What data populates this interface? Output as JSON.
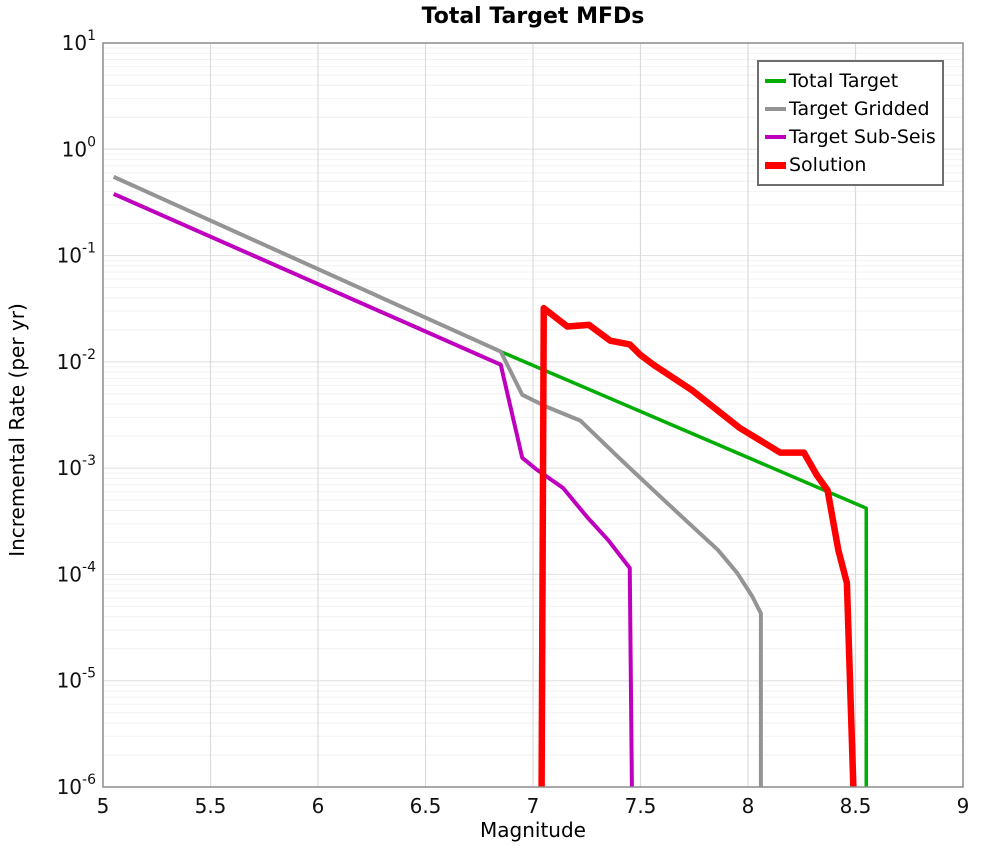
{
  "figure": {
    "background": "#ffffff"
  },
  "chart_data": {
    "type": "line",
    "title": "Total Target MFDs",
    "xlabel": "Magnitude",
    "ylabel": "Incremental Rate (per yr)",
    "x_scale": "linear",
    "y_scale": "log",
    "xlim": [
      5,
      9
    ],
    "ylim_exp": [
      -6,
      1
    ],
    "x_ticks": [
      {
        "value": 5,
        "label": "5"
      },
      {
        "value": 5.5,
        "label": "5.5"
      },
      {
        "value": 6,
        "label": "6"
      },
      {
        "value": 6.5,
        "label": "6.5"
      },
      {
        "value": 7,
        "label": "7"
      },
      {
        "value": 7.5,
        "label": "7.5"
      },
      {
        "value": 8,
        "label": "8"
      },
      {
        "value": 8.5,
        "label": "8.5"
      },
      {
        "value": 9,
        "label": "9"
      }
    ],
    "y_tick_exponents": [
      1,
      0,
      -1,
      -2,
      -3,
      -4,
      -5,
      -6
    ],
    "grid": {
      "vertical_ticks": [
        5.5,
        6,
        6.5,
        7,
        7.5,
        8,
        8.5
      ],
      "major_color": "#e4e4e4",
      "minor_color": "#f2f2f2",
      "vertical_color": "#dbdbdb"
    },
    "frame_color": "#8c8c8c",
    "legend": {
      "position": "top-right",
      "border_color": "#6e6e6e",
      "background": "#ffffff"
    },
    "series": [
      {
        "name": "Total Target",
        "color": "#00ad00",
        "width": 3.5,
        "points": [
          [
            5.05,
            0.55
          ],
          [
            6.85,
            0.0125
          ],
          [
            8.55,
            0.00042
          ],
          [
            8.55,
            1e-06
          ]
        ]
      },
      {
        "name": "Target Gridded",
        "color": "#949494",
        "width": 4,
        "points": [
          [
            5.05,
            0.55
          ],
          [
            6.85,
            0.0125
          ],
          [
            6.95,
            0.0049
          ],
          [
            7.06,
            0.0038
          ],
          [
            7.22,
            0.0028
          ],
          [
            7.4,
            0.00125
          ],
          [
            7.56,
            0.00062
          ],
          [
            7.72,
            0.00031
          ],
          [
            7.86,
            0.00017
          ],
          [
            7.95,
            0.000103
          ],
          [
            8.02,
            6.2e-05
          ],
          [
            8.06,
            4.3e-05
          ],
          [
            8.06,
            1e-06
          ]
        ]
      },
      {
        "name": "Target Sub-Seis",
        "color": "#be00be",
        "width": 4,
        "points": [
          [
            5.05,
            0.38
          ],
          [
            6.85,
            0.0094
          ],
          [
            6.95,
            0.00125
          ],
          [
            7.02,
            0.00096
          ],
          [
            7.14,
            0.00065
          ],
          [
            7.25,
            0.00035
          ],
          [
            7.35,
            0.00021
          ],
          [
            7.45,
            0.000115
          ],
          [
            7.46,
            1e-06
          ]
        ]
      },
      {
        "name": "Solution",
        "color": "#ff0000",
        "width": 6.5,
        "points": [
          [
            7.04,
            1e-06
          ],
          [
            7.05,
            0.032
          ],
          [
            7.16,
            0.0215
          ],
          [
            7.26,
            0.0223
          ],
          [
            7.36,
            0.0158
          ],
          [
            7.45,
            0.0146
          ],
          [
            7.5,
            0.0116
          ],
          [
            7.56,
            0.0094
          ],
          [
            7.74,
            0.0054
          ],
          [
            7.96,
            0.0024
          ],
          [
            8.15,
            0.0014
          ],
          [
            8.26,
            0.0014
          ],
          [
            8.32,
            0.00086
          ],
          [
            8.37,
            0.00062
          ],
          [
            8.42,
            0.00017
          ],
          [
            8.46,
            8.3e-05
          ],
          [
            8.49,
            1e-06
          ]
        ]
      }
    ]
  }
}
